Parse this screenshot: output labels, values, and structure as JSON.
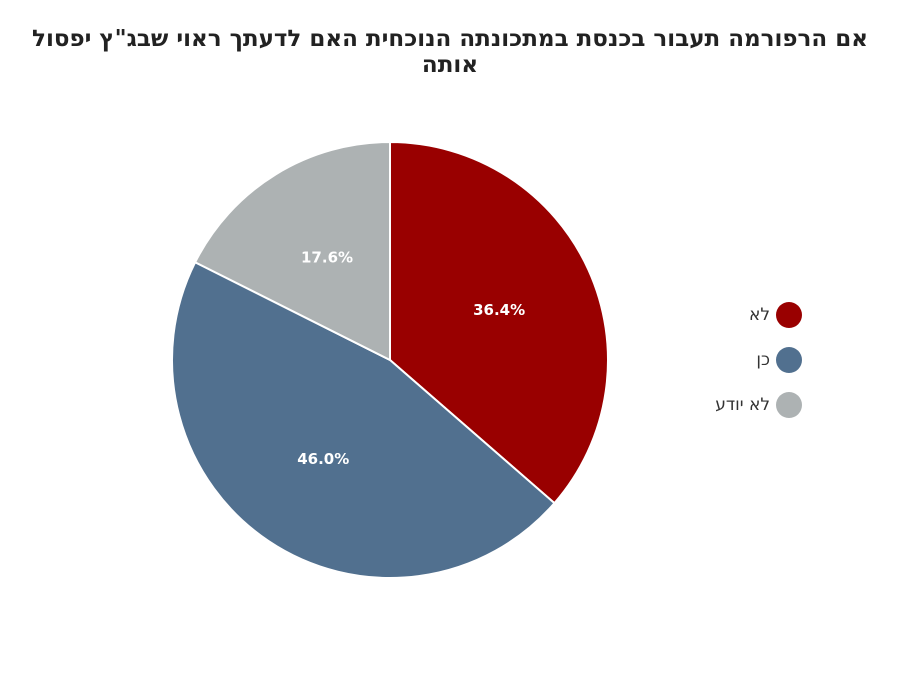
{
  "chart_data": {
    "type": "pie",
    "title": "אם הרפורמה תעבור בכנסת במתכונתה הנוכחית האם לדעתך ראוי שבג\"ץ יפסול אותה",
    "slices": [
      {
        "label": "לא",
        "value": 36.4,
        "value_label": "36.4%",
        "color": "#990000"
      },
      {
        "label": "כן",
        "value": 46.0,
        "value_label": "46.0%",
        "color": "#51708f"
      },
      {
        "label": "לא יודע",
        "value": 17.6,
        "value_label": "17.6%",
        "color": "#adb2b3"
      }
    ],
    "start_angle": "12 o'clock",
    "direction": "clockwise",
    "legend_position": "right"
  }
}
